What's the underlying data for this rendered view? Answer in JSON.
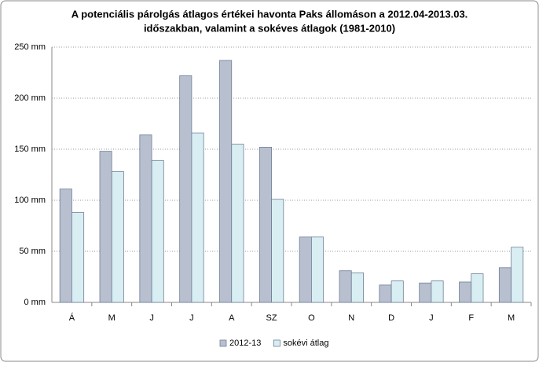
{
  "chart_data": {
    "type": "bar",
    "title": "A potenciális párolgás átlagos értékei havonta Paks állomáson a 2012.04-2013.03.",
    "subtitle": "időszakban, valamint a sokéves átlagok (1981-2010)",
    "categories": [
      "Á",
      "M",
      "J",
      "J",
      "A",
      "SZ",
      "O",
      "N",
      "D",
      "J",
      "F",
      "M"
    ],
    "series": [
      {
        "name": "2012-13",
        "color": "#b8c0d0",
        "values": [
          111,
          148,
          164,
          222,
          237,
          152,
          64,
          31,
          17,
          19,
          20,
          34
        ]
      },
      {
        "name": "sokévi átlag",
        "color": "#d8eef3",
        "values": [
          88,
          128,
          139,
          166,
          155,
          101,
          64,
          29,
          21,
          21,
          28,
          54
        ]
      }
    ],
    "ylim": [
      0,
      250
    ],
    "yticks": [
      {
        "value": 0,
        "label": "0 mm"
      },
      {
        "value": 50,
        "label": "50 mm"
      },
      {
        "value": 100,
        "label": "100 mm"
      },
      {
        "value": 150,
        "label": "150 mm"
      },
      {
        "value": 200,
        "label": "200 mm"
      },
      {
        "value": 250,
        "label": "250 mm"
      }
    ],
    "grid": true,
    "legend": "bottom"
  }
}
